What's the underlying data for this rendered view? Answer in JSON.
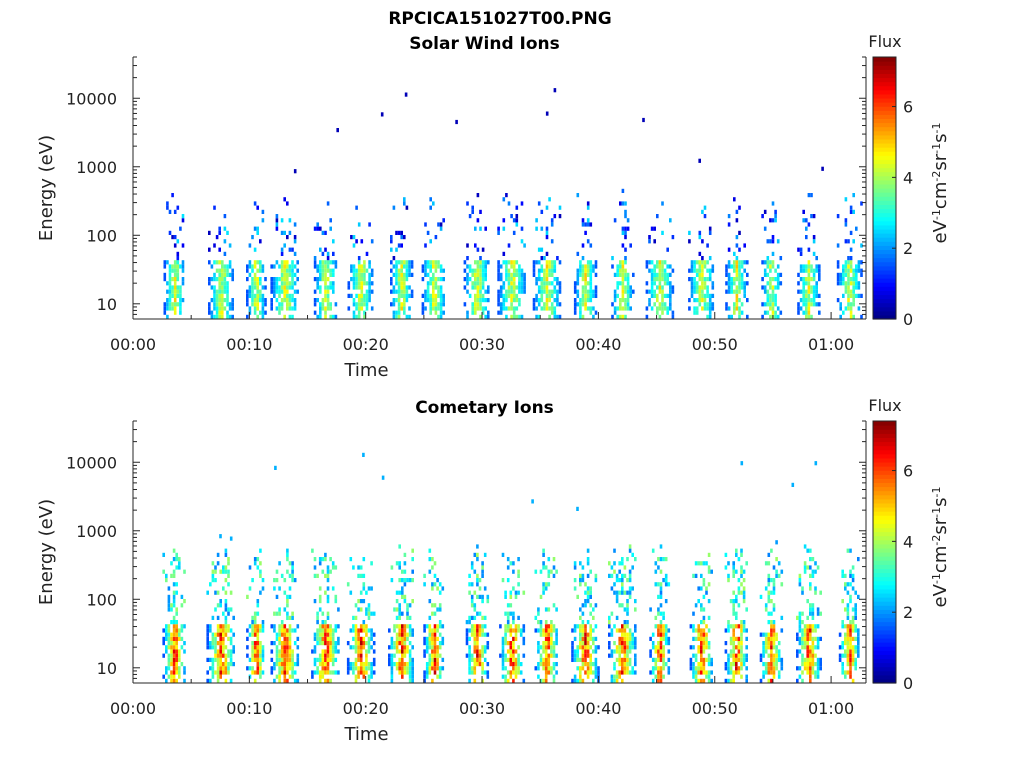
{
  "figure_title": "RPCICA151027T00.PNG",
  "chart_data": [
    {
      "type": "heatmap",
      "title": "Solar Wind Ions",
      "xlabel": "Time",
      "ylabel": "Energy (eV)",
      "x_ticks": [
        "00:00",
        "00:10",
        "00:20",
        "00:30",
        "00:40",
        "00:50",
        "01:00"
      ],
      "y_ticks": [
        "10",
        "100",
        "1000",
        "10000"
      ],
      "y_scale": "log",
      "ylim_eV": [
        6,
        40000
      ],
      "xlim_minutes": [
        0,
        63
      ],
      "colorbar": {
        "title": "Flux",
        "label": "eV-1cm-2sr-1s-1",
        "ticks": [
          "0",
          "2",
          "4",
          "6"
        ],
        "range": [
          0,
          7.4
        ],
        "colormap": "jet"
      },
      "bursts_minutes": [
        3.5,
        7.5,
        10.5,
        13.0,
        16.5,
        19.5,
        23.0,
        25.8,
        29.5,
        32.5,
        35.5,
        38.8,
        42.0,
        45.2,
        48.8,
        51.8,
        54.8,
        58.0,
        61.5
      ],
      "peak_flux": 4.8
    },
    {
      "type": "heatmap",
      "title": "Cometary Ions",
      "xlabel": "Time",
      "ylabel": "Energy (eV)",
      "x_ticks": [
        "00:00",
        "00:10",
        "00:20",
        "00:30",
        "00:40",
        "00:50",
        "01:00"
      ],
      "y_ticks": [
        "10",
        "100",
        "1000",
        "10000"
      ],
      "y_scale": "log",
      "ylim_eV": [
        6,
        40000
      ],
      "xlim_minutes": [
        0,
        63
      ],
      "colorbar": {
        "title": "Flux",
        "label": "eV-1cm-2sr-1s-1",
        "ticks": [
          "0",
          "2",
          "4",
          "6"
        ],
        "range": [
          0,
          7.4
        ],
        "colormap": "jet"
      },
      "bursts_minutes": [
        3.5,
        7.5,
        10.5,
        13.0,
        16.5,
        19.5,
        23.0,
        25.8,
        29.5,
        32.5,
        35.5,
        38.8,
        42.0,
        45.2,
        48.8,
        51.8,
        54.8,
        58.0,
        61.5
      ],
      "peak_flux": 6.9
    }
  ]
}
